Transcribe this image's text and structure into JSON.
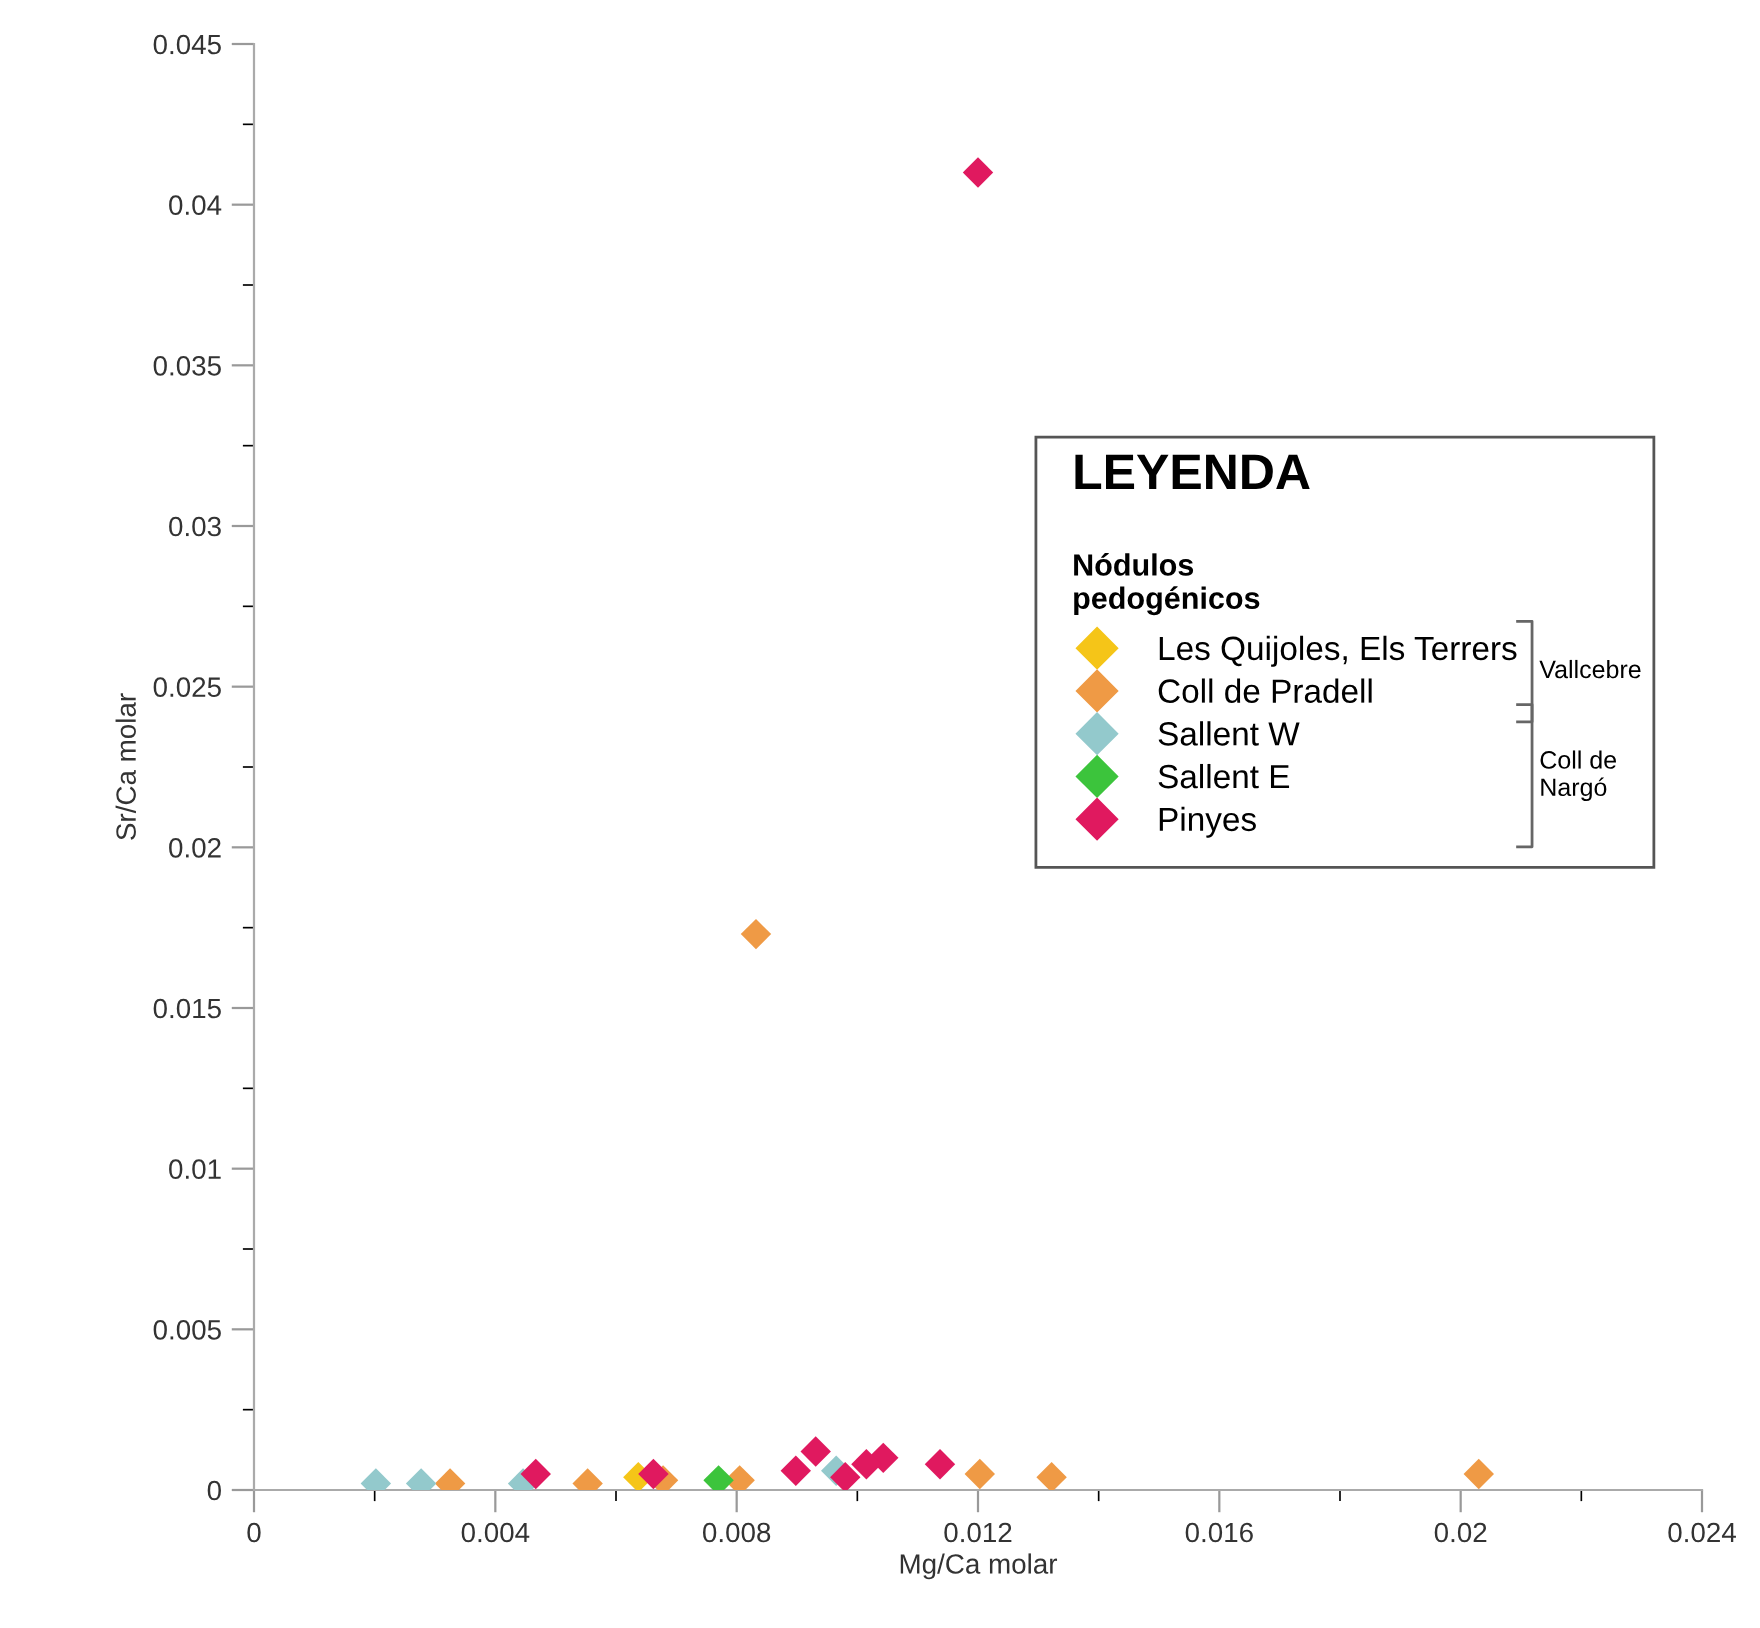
{
  "chart_data": {
    "type": "scatter",
    "xlabel": "Mg/Ca molar",
    "ylabel": "Sr/Ca molar",
    "legend_title": "LEYENDA",
    "annotations": [
      "Nódulos pedogénicos",
      "Vallcebre",
      "Coll de Nargó"
    ],
    "xlim": [
      0,
      0.024
    ],
    "xticks": [
      0,
      0.004,
      0.008,
      0.012,
      0.016,
      0.02,
      0.024
    ],
    "ylim": [
      0,
      0.045
    ],
    "yticks": [
      0,
      0.005,
      0.01,
      0.015,
      0.02,
      0.025,
      0.03,
      0.035,
      0.04,
      0.045
    ],
    "grid": false,
    "legend": "right",
    "marker": "diamond",
    "series": [
      {
        "name": "Les Quijoles, Els Terrers",
        "color": "#f5c518",
        "x": [
          0.00637
        ],
        "values": [
          0.0004
        ]
      },
      {
        "name": "Coll de Pradell",
        "color": "#ef9a45",
        "x": [
          0.00325,
          0.00553,
          0.00678,
          0.00805,
          0.00832,
          0.01203,
          0.01322,
          0.0203
        ],
        "values": [
          0.0002,
          0.0002,
          0.0003,
          0.0003,
          0.0173,
          0.0005,
          0.0004,
          0.0005
        ]
      },
      {
        "name": "Sallent W",
        "color": "#93c9cc",
        "x": [
          0.00202,
          0.00277,
          0.00446,
          0.00965
        ],
        "values": [
          0.0002,
          0.0002,
          0.0002,
          0.0006
        ]
      },
      {
        "name": "Sallent E",
        "color": "#3cc43c",
        "x": [
          0.0077
        ],
        "values": [
          0.0003
        ]
      },
      {
        "name": "Pinyes",
        "color": "#e0195f",
        "x": [
          0.00467,
          0.00662,
          0.00898,
          0.00931,
          0.0098,
          0.01043,
          0.01015,
          0.01137,
          0.012
        ],
        "values": [
          0.0005,
          0.0005,
          0.0006,
          0.0012,
          0.0004,
          0.001,
          0.0008,
          0.0008,
          0.041
        ]
      }
    ]
  }
}
